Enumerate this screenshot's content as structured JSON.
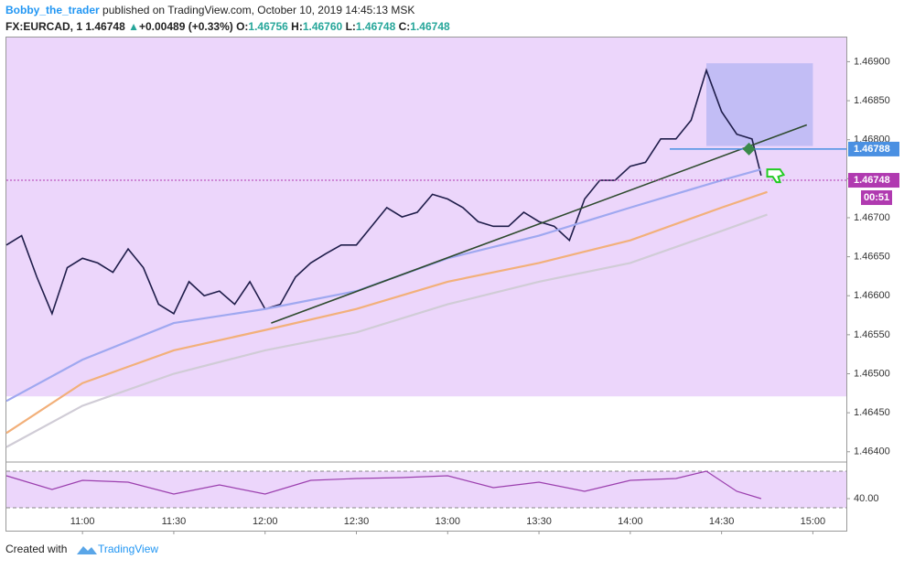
{
  "header": {
    "author": "Bobby_the_trader",
    "published": "published on TradingView.com, October 10, 2019 14:45:13 MSK",
    "symbol": "FX:EURCAD, 1",
    "last": "1.46748",
    "arrow": "▲",
    "change": "+0.00489 (+0.33%)",
    "o_label": "O:",
    "o": "1.46756",
    "h_label": "H:",
    "h": "1.46760",
    "l_label": "L:",
    "l": "1.46748",
    "c_label": "C:",
    "c": "1.46748"
  },
  "footer": {
    "created": "Created with",
    "brand": "TradingView"
  },
  "chart_data": [
    {
      "type": "line",
      "xlim": [
        "10:35",
        "15:11"
      ],
      "xticks": [
        "11:00",
        "11:30",
        "12:00",
        "12:30",
        "13:00",
        "13:30",
        "14:00",
        "14:30",
        "15:00"
      ],
      "ylim": [
        1.46388,
        1.46931
      ],
      "yticks": [
        {
          "value": 1.464,
          "label": "1.46400"
        },
        {
          "value": 1.4645,
          "label": "1.46450"
        },
        {
          "value": 1.465,
          "label": "1.46500"
        },
        {
          "value": 1.4655,
          "label": "1.46550"
        },
        {
          "value": 1.466,
          "label": "1.46600"
        },
        {
          "value": 1.4665,
          "label": "1.46650"
        },
        {
          "value": 1.467,
          "label": "1.46700"
        },
        {
          "value": 1.4675,
          "label": "1.46750"
        },
        {
          "value": 1.468,
          "label": "1.46800"
        },
        {
          "value": 1.4685,
          "label": "1.46850"
        },
        {
          "value": 1.469,
          "label": "1.46900"
        }
      ],
      "shaded_range": [
        1.46471,
        1.46931
      ],
      "box": {
        "x": [
          "14:25",
          "15:00"
        ],
        "y": [
          1.46792,
          1.46898
        ]
      },
      "trendline": {
        "x": [
          "12:02",
          "14:58"
        ],
        "y": [
          1.46565,
          1.46819
        ]
      },
      "price_lines": [
        {
          "value": 1.46788,
          "color": "#4a90e2"
        },
        {
          "value": 1.46748,
          "color": "#b03ab0"
        }
      ],
      "countdown": "00:51",
      "series": [
        {
          "color": "#1f1d4a",
          "x": [
            "10:35",
            "10:40",
            "10:45",
            "10:50",
            "10:55",
            "11:00",
            "11:05",
            "11:10",
            "11:15",
            "11:20",
            "11:25",
            "11:30",
            "11:35",
            "11:40",
            "11:45",
            "11:50",
            "11:55",
            "12:00",
            "12:05",
            "12:10",
            "12:15",
            "12:20",
            "12:25",
            "12:30",
            "12:35",
            "12:40",
            "12:45",
            "12:50",
            "12:55",
            "13:00",
            "13:05",
            "13:10",
            "13:15",
            "13:20",
            "13:25",
            "13:30",
            "13:35",
            "13:40",
            "13:45",
            "13:50",
            "13:55",
            "14:00",
            "14:05",
            "14:10",
            "14:15",
            "14:20",
            "14:25",
            "14:30",
            "14:35",
            "14:40",
            "14:43"
          ],
          "values": [
            1.46665,
            1.46677,
            1.46624,
            1.46577,
            1.46636,
            1.46648,
            1.46642,
            1.4663,
            1.4666,
            1.46636,
            1.46589,
            1.46577,
            1.46618,
            1.466,
            1.46606,
            1.46589,
            1.46618,
            1.46583,
            1.46589,
            1.46624,
            1.46642,
            1.46654,
            1.46665,
            1.46665,
            1.46689,
            1.46713,
            1.46701,
            1.46707,
            1.4673,
            1.46724,
            1.46713,
            1.46695,
            1.46689,
            1.46689,
            1.46707,
            1.46695,
            1.46689,
            1.46671,
            1.46724,
            1.46748,
            1.46748,
            1.46766,
            1.46771,
            1.46801,
            1.46801,
            1.46825,
            1.46889,
            1.46836,
            1.46807,
            1.46801,
            1.46754
          ]
        },
        {
          "color": "#9fa8f0",
          "x": [
            "10:35",
            "11:00",
            "11:30",
            "12:00",
            "12:30",
            "13:00",
            "13:30",
            "14:00",
            "14:30",
            "14:43"
          ],
          "values": [
            1.46465,
            1.46518,
            1.46565,
            1.46583,
            1.46606,
            1.46648,
            1.46677,
            1.46713,
            1.46748,
            1.46762
          ]
        },
        {
          "color": "#f2b07a",
          "x": [
            "10:35",
            "11:00",
            "11:30",
            "12:00",
            "12:30",
            "13:00",
            "13:30",
            "14:00",
            "14:30",
            "14:45"
          ],
          "values": [
            1.46424,
            1.46488,
            1.4653,
            1.46556,
            1.46583,
            1.46618,
            1.46642,
            1.46671,
            1.46713,
            1.46733
          ]
        },
        {
          "color": "#d0ccd6",
          "x": [
            "10:35",
            "11:00",
            "11:30",
            "12:00",
            "12:30",
            "13:00",
            "13:30",
            "14:00",
            "14:30",
            "14:45"
          ],
          "values": [
            1.46406,
            1.46459,
            1.465,
            1.4653,
            1.46553,
            1.46589,
            1.46618,
            1.46642,
            1.46683,
            1.46704
          ]
        }
      ]
    },
    {
      "type": "line",
      "ylim": [
        5,
        75
      ],
      "yticks": [
        {
          "value": 40,
          "label": "40.00"
        }
      ],
      "levels": [
        70,
        30
      ],
      "series": [
        {
          "color": "#9b3fae",
          "x": [
            "10:35",
            "10:50",
            "11:00",
            "11:15",
            "11:30",
            "11:45",
            "12:00",
            "12:15",
            "12:30",
            "12:45",
            "13:00",
            "13:15",
            "13:30",
            "13:45",
            "14:00",
            "14:15",
            "14:25",
            "14:35",
            "14:43"
          ],
          "values": [
            65,
            50,
            60,
            58,
            45,
            55,
            45,
            60,
            62,
            63,
            65,
            52,
            58,
            48,
            60,
            62,
            70,
            48,
            40
          ]
        }
      ]
    }
  ]
}
